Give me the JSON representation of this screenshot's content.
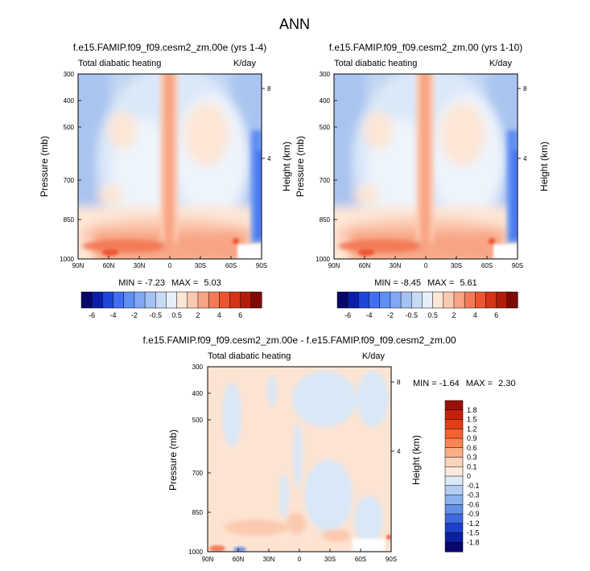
{
  "figure": {
    "main_title": "ANN"
  },
  "chart_data": [
    {
      "type": "heatmap",
      "title": "f.e15.FAMIP.f09_f09.cesm2_zm.00e (yrs 1-4)",
      "left_string": "Total diabatic heating",
      "right_string": "K/day",
      "ylabel": "Pressure (mb)",
      "ylabel_right": "Height (km)",
      "x_ticks": [
        "90N",
        "60N",
        "30N",
        "0",
        "30S",
        "60S",
        "90S"
      ],
      "y_ticks": [
        "300",
        "400",
        "500",
        "700",
        "850",
        "1000"
      ],
      "y_ticks_right": [
        "8",
        "4"
      ],
      "xlim": [
        90,
        -90
      ],
      "ylim": [
        1000,
        300
      ],
      "min_label": "MIN = ",
      "min": "-7.23",
      "max_label": "MAX = ",
      "max": "5.03"
    },
    {
      "type": "heatmap",
      "title": "f.e15.FAMIP.f09_f09.cesm2_zm.00 (yrs 1-10)",
      "left_string": "Total diabatic heating",
      "right_string": "K/day",
      "ylabel": "Pressure (mb)",
      "ylabel_right": "Height (km)",
      "x_ticks": [
        "90N",
        "60N",
        "30N",
        "0",
        "30S",
        "60S",
        "90S"
      ],
      "y_ticks": [
        "300",
        "400",
        "500",
        "700",
        "850",
        "1000"
      ],
      "y_ticks_right": [
        "8",
        "4"
      ],
      "xlim": [
        90,
        -90
      ],
      "ylim": [
        1000,
        300
      ],
      "min_label": "MIN = ",
      "min": "-8.45",
      "max_label": "MAX = ",
      "max": "5.61"
    },
    {
      "type": "heatmap",
      "title": "f.e15.FAMIP.f09_f09.cesm2_zm.00e - f.e15.FAMIP.f09_f09.cesm2_zm.00",
      "left_string": "Total diabatic heating",
      "right_string": "K/day",
      "ylabel": "Pressure (mb)",
      "ylabel_right": "Height (km)",
      "x_ticks": [
        "90N",
        "60N",
        "30N",
        "0",
        "30S",
        "60S",
        "90S"
      ],
      "y_ticks": [
        "300",
        "400",
        "500",
        "700",
        "850",
        "1000"
      ],
      "y_ticks_right": [
        "8",
        "4"
      ],
      "xlim": [
        90,
        -90
      ],
      "ylim": [
        1000,
        300
      ],
      "min_label": "MIN = ",
      "min": "-1.64",
      "max_label": "MAX = ",
      "max": "2.30"
    }
  ],
  "colorbars": {
    "horizontal": {
      "labels": [
        "-6",
        "-4",
        "-2",
        "-0.5",
        "0.5",
        "2",
        "4",
        "6"
      ],
      "colors": [
        "#08086b",
        "#0a1fa8",
        "#1f45d8",
        "#3f6ff0",
        "#5f8ff2",
        "#80a8f4",
        "#a4c2f4",
        "#c8dbf6",
        "#e6f0fb",
        "#fde6d6",
        "#fbc9b0",
        "#f8a585",
        "#f37c57",
        "#ec5530",
        "#d53416",
        "#b51b0b",
        "#7f0a05"
      ]
    },
    "vertical": {
      "labels": [
        "1.8",
        "1.5",
        "1.2",
        "0.9",
        "0.6",
        "0.3",
        "0.1",
        "0",
        "-0.1",
        "-0.3",
        "-0.6",
        "-0.9",
        "-1.2",
        "-1.5",
        "-1.8"
      ],
      "colors": [
        "#9a1005",
        "#c4200b",
        "#e23c15",
        "#f3622f",
        "#f88552",
        "#fbae86",
        "#fdd3bd",
        "#fde9dc",
        "#dbe9f8",
        "#b3cdf2",
        "#8bb0ec",
        "#6590e7",
        "#3f69dd",
        "#1d3fc9",
        "#0b1fa0",
        "#06086b"
      ]
    }
  },
  "colors": {
    "near_zero_cool": "#d9e7f7",
    "near_zero_warm": "#fde4d2"
  }
}
